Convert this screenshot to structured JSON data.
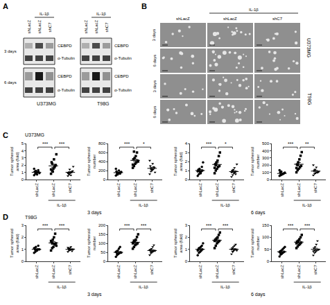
{
  "panel_A": {
    "label": "A",
    "treatment": "IL-1β",
    "columns": [
      "shLacZ",
      "shLacZ",
      "shC7"
    ],
    "times": [
      "3 days",
      "6 days"
    ],
    "bands": [
      "CEBPD",
      "α-Tubulin"
    ],
    "cell_lines": [
      "U373MG",
      "T98G"
    ]
  },
  "panel_B": {
    "label": "B",
    "treatment": "IL-1β",
    "columns": [
      "shLacZ",
      "shLacZ",
      "shC7"
    ],
    "times": [
      "3 days",
      "6 days"
    ],
    "cell_lines": [
      "U373MG",
      "T98G"
    ]
  },
  "rows": [
    {
      "label": "C",
      "title": "U373MG",
      "times": [
        "3 days",
        "6 days"
      ]
    },
    {
      "label": "D",
      "title": "T98G",
      "times": [
        "3 days",
        "6 days"
      ]
    }
  ],
  "chart_data": [
    {
      "type": "scatter",
      "ylabel": "Tumor spheroid area (fold)",
      "categories": [
        "shLacZ",
        "shLacZ",
        "shC7"
      ],
      "treatment": "IL-1β",
      "ylim": [
        0,
        5
      ],
      "yticks": [
        0,
        1,
        2,
        3,
        4,
        5
      ],
      "significance": [
        "***",
        "***"
      ],
      "groups": [
        {
          "marker": "circle",
          "color": "#000000",
          "values": [
            0.6,
            0.8,
            0.9,
            1.0,
            1.0,
            1.1,
            1.2,
            0.7,
            1.3,
            0.9,
            1.5,
            1.1
          ],
          "mean": 1.0,
          "sem": 0.07
        },
        {
          "marker": "square",
          "color": "#000000",
          "values": [
            0.8,
            1.2,
            1.5,
            1.7,
            2.0,
            2.4,
            1.1,
            2.8,
            1.9,
            3.5,
            1.4,
            2.2
          ],
          "mean": 1.9,
          "sem": 0.23
        },
        {
          "marker": "triangle-down",
          "color": "#000000",
          "values": [
            0.5,
            0.7,
            0.9,
            1.0,
            1.2,
            0.8,
            1.4,
            0.6,
            1.1,
            1.8,
            0.9,
            1.0
          ],
          "mean": 1.0,
          "sem": 0.1
        }
      ]
    },
    {
      "type": "scatter",
      "ylabel": "Tumor spheroid number",
      "categories": [
        "shLacZ",
        "shLacZ",
        "shC7"
      ],
      "treatment": "IL-1β",
      "ylim": [
        0,
        800
      ],
      "yticks": [
        0,
        200,
        400,
        600,
        800
      ],
      "significance": [
        "***",
        "*"
      ],
      "groups": [
        {
          "marker": "circle",
          "color": "#000000",
          "values": [
            90,
            120,
            140,
            150,
            160,
            180,
            110,
            200,
            130,
            170,
            240,
            150
          ],
          "mean": 153,
          "sem": 12
        },
        {
          "marker": "square",
          "color": "#000000",
          "values": [
            260,
            300,
            350,
            380,
            420,
            450,
            480,
            520,
            600,
            400,
            330,
            620
          ],
          "mean": 426,
          "sem": 30
        },
        {
          "marker": "triangle-down",
          "color": "#000000",
          "values": [
            120,
            180,
            200,
            230,
            260,
            300,
            220,
            350,
            280,
            160,
            420,
            250
          ],
          "mean": 248,
          "sem": 24
        }
      ]
    },
    {
      "type": "scatter",
      "ylabel": "Tumor spheroid area (fold)",
      "categories": [
        "shLacZ",
        "shLacZ",
        "shC7"
      ],
      "treatment": "IL-1β",
      "ylim": [
        0,
        4
      ],
      "yticks": [
        0,
        1,
        2,
        3,
        4
      ],
      "significance": [
        "***",
        "*"
      ],
      "groups": [
        {
          "marker": "circle",
          "color": "#000000",
          "values": [
            0.4,
            0.6,
            0.8,
            0.9,
            1.0,
            1.1,
            1.2,
            0.7,
            1.4,
            1.9,
            0.9,
            1.0
          ],
          "mean": 1.0,
          "sem": 0.11
        },
        {
          "marker": "square",
          "color": "#000000",
          "values": [
            0.7,
            1.0,
            1.2,
            1.4,
            1.5,
            1.7,
            1.9,
            2.1,
            2.6,
            3.0,
            1.3,
            1.6
          ],
          "mean": 1.67,
          "sem": 0.19
        },
        {
          "marker": "triangle-down",
          "color": "#000000",
          "values": [
            0.3,
            0.5,
            0.7,
            0.8,
            0.9,
            1.0,
            1.1,
            1.3,
            0.6,
            1.7,
            0.8,
            0.9
          ],
          "mean": 0.88,
          "sem": 0.11
        }
      ]
    },
    {
      "type": "scatter",
      "ylabel": "Tumor spheroid number",
      "categories": [
        "shLacZ",
        "shLacZ",
        "shC7"
      ],
      "treatment": "IL-1β",
      "ylim": [
        0,
        500
      ],
      "yticks": [
        0,
        100,
        200,
        300,
        400,
        500
      ],
      "significance": [
        "***",
        "**"
      ],
      "groups": [
        {
          "marker": "circle",
          "color": "#000000",
          "values": [
            50,
            60,
            70,
            80,
            90,
            100,
            110,
            75,
            85,
            95,
            130,
            65
          ],
          "mean": 84,
          "sem": 6.5
        },
        {
          "marker": "square",
          "color": "#000000",
          "values": [
            100,
            130,
            150,
            170,
            190,
            210,
            240,
            280,
            330,
            380,
            160,
            200
          ],
          "mean": 212,
          "sem": 24
        },
        {
          "marker": "triangle-down",
          "color": "#000000",
          "values": [
            60,
            80,
            90,
            100,
            110,
            120,
            140,
            170,
            95,
            105,
            200,
            130
          ],
          "mean": 117,
          "sem": 11
        }
      ]
    },
    {
      "type": "scatter",
      "ylabel": "Tumor spheroid area (fold)",
      "categories": [
        "shLacZ",
        "shLacZ",
        "shC7"
      ],
      "treatment": "IL-1β",
      "ylim": [
        0,
        3
      ],
      "yticks": [
        0,
        1,
        2,
        3
      ],
      "significance": [
        "***",
        "***"
      ],
      "groups": [
        {
          "marker": "circle",
          "color": "#000000",
          "values": [
            0.7,
            0.8,
            0.9,
            1.0,
            1.0,
            1.1,
            1.2,
            0.9,
            1.3,
            1.0,
            1.1,
            0.95
          ],
          "mean": 1.0,
          "sem": 0.05
        },
        {
          "marker": "square",
          "color": "#000000",
          "values": [
            0.9,
            1.1,
            1.2,
            1.4,
            1.5,
            1.6,
            1.8,
            2.0,
            2.3,
            1.3,
            1.7,
            1.5
          ],
          "mean": 1.53,
          "sem": 0.12
        },
        {
          "marker": "triangle-down",
          "color": "#000000",
          "values": [
            0.8,
            0.9,
            0.95,
            1.0,
            1.0,
            1.05,
            1.1,
            1.2,
            0.85,
            1.0,
            1.15,
            1.0
          ],
          "mean": 1.0,
          "sem": 0.03
        }
      ]
    },
    {
      "type": "scatter",
      "ylabel": "Tumor spheroid number",
      "categories": [
        "shLacZ",
        "shLacZ",
        "shC7"
      ],
      "treatment": "IL-1β",
      "ylim": [
        0,
        200
      ],
      "yticks": [
        0,
        50,
        100,
        150,
        200
      ],
      "significance": [
        "***",
        "***"
      ],
      "groups": [
        {
          "marker": "circle",
          "color": "#000000",
          "values": [
            25,
            35,
            40,
            45,
            50,
            55,
            60,
            70,
            80,
            48,
            52,
            42
          ],
          "mean": 50,
          "sem": 4.5
        },
        {
          "marker": "square",
          "color": "#000000",
          "values": [
            70,
            80,
            90,
            95,
            100,
            105,
            110,
            120,
            135,
            150,
            100,
            115
          ],
          "mean": 106,
          "sem": 6.5
        },
        {
          "marker": "triangle-down",
          "color": "#000000",
          "values": [
            35,
            45,
            50,
            55,
            60,
            65,
            70,
            80,
            90,
            58,
            62,
            52
          ],
          "mean": 60,
          "sem": 4.5
        }
      ]
    },
    {
      "type": "scatter",
      "ylabel": "Tumor spheroid area (fold)",
      "categories": [
        "shLacZ",
        "shLacZ",
        "shC7"
      ],
      "treatment": "IL-1β",
      "ylim": [
        0,
        3
      ],
      "yticks": [
        0,
        1,
        2,
        3
      ],
      "significance": [
        "***",
        "***"
      ],
      "groups": [
        {
          "marker": "circle",
          "color": "#000000",
          "values": [
            0.5,
            0.7,
            0.8,
            0.9,
            1.0,
            1.0,
            1.1,
            1.2,
            1.3,
            1.5,
            0.9,
            1.1
          ],
          "mean": 1.0,
          "sem": 0.08
        },
        {
          "marker": "square",
          "color": "#000000",
          "values": [
            1.1,
            1.3,
            1.5,
            1.6,
            1.7,
            1.8,
            1.9,
            2.0,
            2.2,
            2.4,
            1.7,
            1.8
          ],
          "mean": 1.75,
          "sem": 0.1
        },
        {
          "marker": "triangle-down",
          "color": "#000000",
          "values": [
            0.6,
            0.8,
            0.9,
            1.0,
            1.0,
            1.1,
            1.2,
            1.3,
            1.4,
            0.9,
            1.0,
            0.8
          ],
          "mean": 1.0,
          "sem": 0.06
        }
      ]
    },
    {
      "type": "scatter",
      "ylabel": "Tumor spheroid number",
      "categories": [
        "shLacZ",
        "shLacZ",
        "shC7"
      ],
      "treatment": "IL-1β",
      "ylim": [
        0,
        150
      ],
      "yticks": [
        0,
        50,
        100,
        150
      ],
      "significance": [
        "***",
        "***"
      ],
      "groups": [
        {
          "marker": "circle",
          "color": "#000000",
          "values": [
            20,
            28,
            32,
            36,
            40,
            42,
            45,
            50,
            55,
            60,
            38,
            34
          ],
          "mean": 40,
          "sem": 3.4
        },
        {
          "marker": "square",
          "color": "#000000",
          "values": [
            55,
            62,
            68,
            72,
            78,
            82,
            86,
            92,
            100,
            110,
            75,
            80
          ],
          "mean": 80,
          "sem": 4.5
        },
        {
          "marker": "triangle-down",
          "color": "#000000",
          "values": [
            25,
            35,
            40,
            45,
            50,
            55,
            60,
            70,
            85,
            48,
            42,
            45
          ],
          "mean": 50,
          "sem": 4.7
        }
      ]
    }
  ]
}
